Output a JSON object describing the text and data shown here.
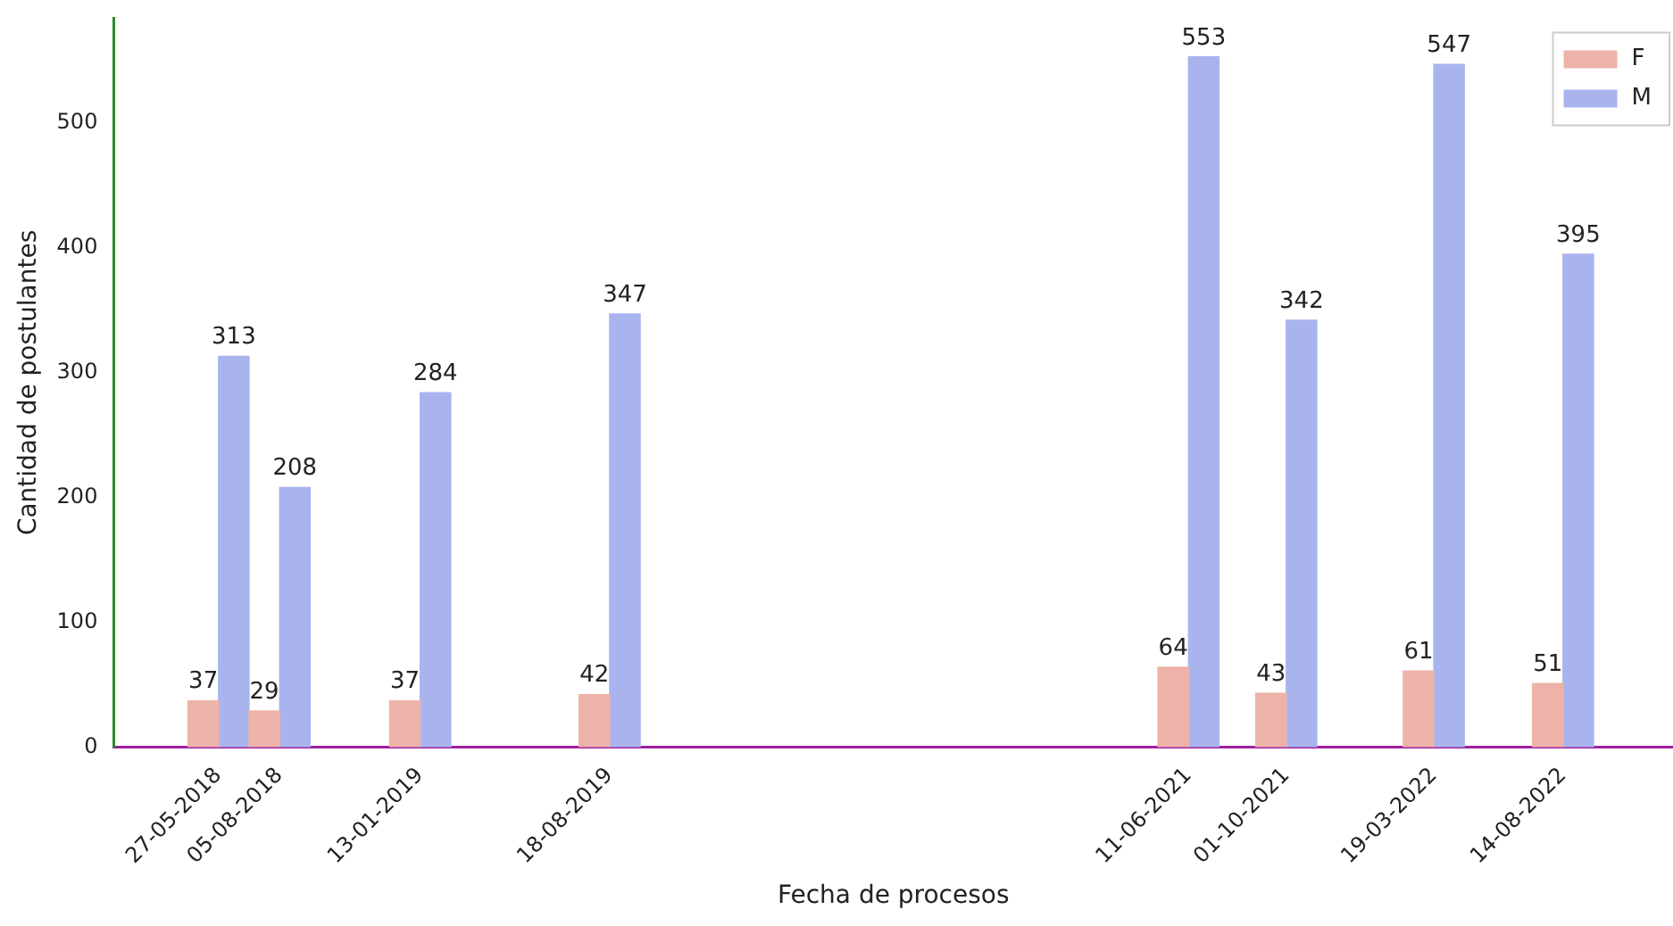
{
  "chart_data": {
    "type": "bar",
    "xlabel": "Fecha de procesos",
    "ylabel": "Cantidad de postulantes",
    "x": [
      "2018-05-27",
      "2018-08-05",
      "2019-01-13",
      "2019-08-18",
      "2021-06-11",
      "2021-10-01",
      "2022-03-19",
      "2022-08-14"
    ],
    "series": [
      {
        "name": "F",
        "color": "#eeb3a8",
        "values": [
          37,
          29,
          37,
          42,
          64,
          43,
          61,
          51
        ]
      },
      {
        "name": "M",
        "color": "#a9b4ee",
        "values": [
          313,
          208,
          284,
          347,
          553,
          342,
          547,
          395
        ]
      }
    ],
    "xlim": [
      "2018-01-27",
      "2022-12-18"
    ],
    "xticks": [
      {
        "value": "2018-05-27",
        "label": "27-05-2018"
      },
      {
        "value": "2018-08-05",
        "label": "05-08-2018"
      },
      {
        "value": "2019-01-13",
        "label": "13-01-2019"
      },
      {
        "value": "2019-08-18",
        "label": "18-08-2019"
      },
      {
        "value": "2021-06-11",
        "label": "11-06-2021"
      },
      {
        "value": "2021-10-01",
        "label": "01-10-2021"
      },
      {
        "value": "2022-03-19",
        "label": "19-03-2022"
      },
      {
        "value": "2022-08-14",
        "label": "14-08-2022"
      }
    ],
    "ylim": [
      0,
      584
    ],
    "yticks": [
      0,
      100,
      200,
      300,
      400,
      500
    ],
    "data_labels": true,
    "legend": "top right",
    "grid": false
  }
}
